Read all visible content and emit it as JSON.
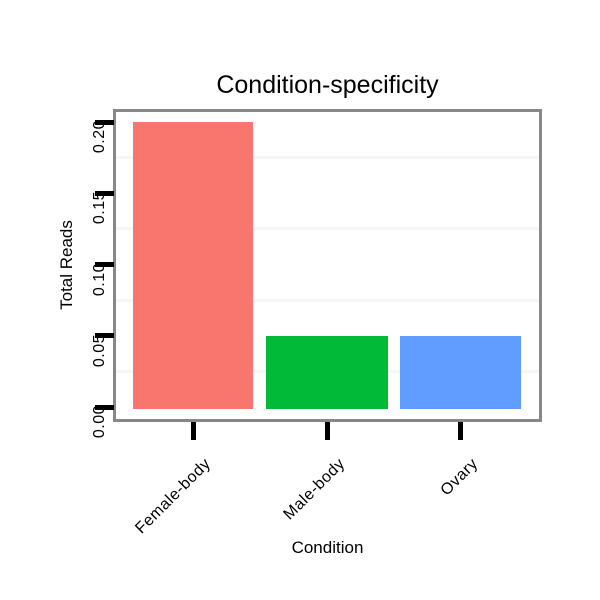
{
  "chart_data": {
    "type": "bar",
    "title": "Condition-specificity",
    "xlabel": "Condition",
    "ylabel": "Total Reads",
    "categories": [
      "Female-body",
      "Male-body",
      "Ovary"
    ],
    "values": [
      0.2,
      0.05,
      0.05
    ],
    "bar_colors": [
      "#F8766D",
      "#00BA38",
      "#619CFF"
    ],
    "ylim": [
      0,
      0.21
    ],
    "yticks": [
      0,
      0.05,
      0.1,
      0.15,
      0.2
    ],
    "ytick_labels": [
      "0.00",
      "0.05",
      "0.10",
      "0.15",
      "0.20"
    ],
    "minor_gridlines": [
      0.025,
      0.075,
      0.125,
      0.175
    ],
    "x_tick_label_rotation_deg": 45,
    "y_tick_label_rotation_deg": 90,
    "grid": "minor horizontal only",
    "legend": "none",
    "panel_border_color": "#888888",
    "gridline_color": "#f6f6f6",
    "tick_color": "#000000",
    "text_color": "#000000",
    "background_color": "#ffffff"
  }
}
